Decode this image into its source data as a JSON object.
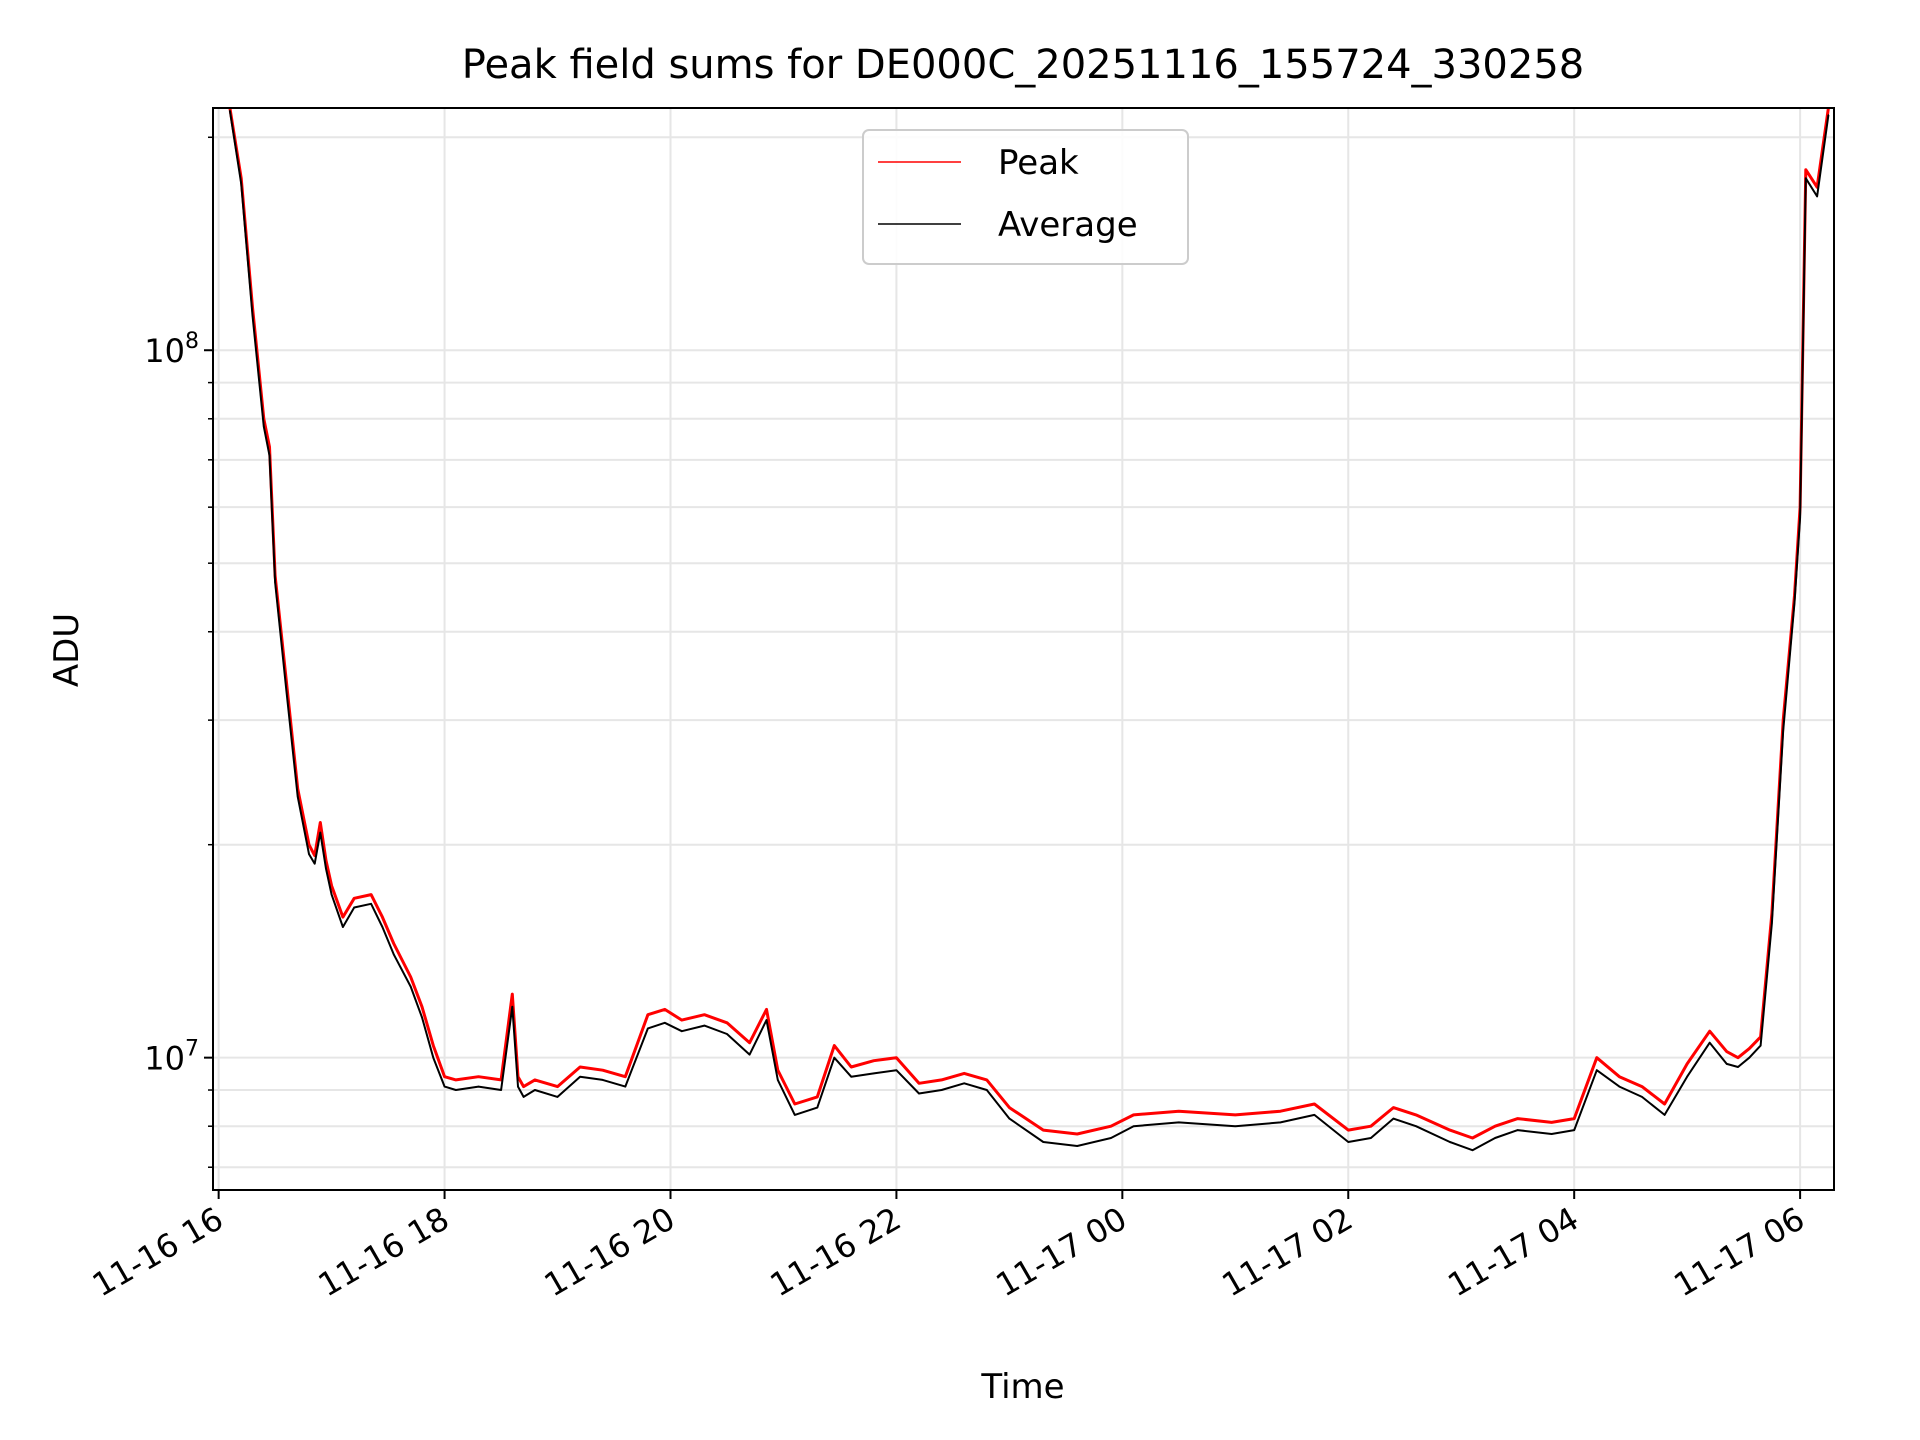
{
  "chart_data": {
    "type": "line",
    "title": "Peak field sums for DE000C_20251116_155724_330258",
    "xlabel": "Time",
    "ylabel": "ADU",
    "yscale": "log",
    "ylim": [
      6500000,
      220000000
    ],
    "xlim_hours": [
      -0.05,
      14.3
    ],
    "x_unit": "hours since 11-16 16:00",
    "grid": true,
    "legend_position": "upper-center",
    "x_ticks": [
      {
        "hours": 0,
        "label": "11-16 16"
      },
      {
        "hours": 2,
        "label": "11-16 18"
      },
      {
        "hours": 4,
        "label": "11-16 20"
      },
      {
        "hours": 6,
        "label": "11-16 22"
      },
      {
        "hours": 8,
        "label": "11-17 00"
      },
      {
        "hours": 10,
        "label": "11-17 02"
      },
      {
        "hours": 12,
        "label": "11-17 04"
      },
      {
        "hours": 14,
        "label": "11-17 06"
      }
    ],
    "y_major_ticks": [
      {
        "value": 10000000,
        "base": "10",
        "exp": "7"
      },
      {
        "value": 100000000,
        "base": "10",
        "exp": "8"
      }
    ],
    "y_minor_ticks": [
      7000000,
      8000000,
      9000000,
      20000000,
      30000000,
      40000000,
      50000000,
      60000000,
      70000000,
      80000000,
      90000000,
      200000000
    ],
    "series": [
      {
        "name": "Peak",
        "color": "#ff0000",
        "x": [
          0.1,
          0.2,
          0.3,
          0.4,
          0.45,
          0.5,
          0.6,
          0.7,
          0.8,
          0.85,
          0.9,
          0.95,
          1.0,
          1.1,
          1.2,
          1.35,
          1.45,
          1.55,
          1.7,
          1.8,
          1.9,
          2.0,
          2.1,
          2.3,
          2.5,
          2.6,
          2.65,
          2.7,
          2.8,
          3.0,
          3.2,
          3.4,
          3.6,
          3.8,
          3.95,
          4.1,
          4.3,
          4.5,
          4.7,
          4.85,
          4.95,
          5.1,
          5.3,
          5.45,
          5.6,
          5.8,
          6.0,
          6.2,
          6.4,
          6.6,
          6.8,
          7.0,
          7.3,
          7.6,
          7.9,
          8.1,
          8.5,
          9.0,
          9.4,
          9.7,
          10.0,
          10.2,
          10.4,
          10.6,
          10.9,
          11.1,
          11.3,
          11.5,
          11.8,
          12.0,
          12.2,
          12.4,
          12.6,
          12.8,
          13.0,
          13.2,
          13.35,
          13.45,
          13.55,
          13.65,
          13.75,
          13.85,
          13.95,
          14.0,
          14.05,
          14.15,
          14.25
        ],
        "values": [
          220000000,
          175000000,
          115000000,
          80000000,
          73000000,
          48000000,
          34000000,
          24000000,
          20000000,
          19300000,
          21500000,
          19000000,
          17500000,
          15800000,
          16800000,
          17000000,
          15800000,
          14500000,
          13000000,
          11800000,
          10400000,
          9400000,
          9300000,
          9400000,
          9300000,
          12300000,
          9400000,
          9100000,
          9300000,
          9100000,
          9700000,
          9600000,
          9400000,
          11500000,
          11700000,
          11300000,
          11500000,
          11200000,
          10500000,
          11700000,
          9600000,
          8600000,
          8800000,
          10400000,
          9700000,
          9900000,
          10000000,
          9200000,
          9300000,
          9500000,
          9300000,
          8500000,
          7900000,
          7800000,
          8000000,
          8300000,
          8400000,
          8300000,
          8400000,
          8600000,
          7900000,
          8000000,
          8500000,
          8300000,
          7900000,
          7700000,
          8000000,
          8200000,
          8100000,
          8200000,
          10000000,
          9400000,
          9100000,
          8600000,
          9800000,
          10900000,
          10200000,
          10000000,
          10300000,
          10700000,
          16000000,
          30000000,
          45000000,
          60000000,
          180000000,
          170000000,
          220000000
        ]
      },
      {
        "name": "Average",
        "color": "#000000",
        "x": [
          0.1,
          0.2,
          0.3,
          0.4,
          0.45,
          0.5,
          0.6,
          0.7,
          0.8,
          0.85,
          0.9,
          0.95,
          1.0,
          1.1,
          1.2,
          1.35,
          1.45,
          1.55,
          1.7,
          1.8,
          1.9,
          2.0,
          2.1,
          2.3,
          2.5,
          2.6,
          2.65,
          2.7,
          2.8,
          3.0,
          3.2,
          3.4,
          3.6,
          3.8,
          3.95,
          4.1,
          4.3,
          4.5,
          4.7,
          4.85,
          4.95,
          5.1,
          5.3,
          5.45,
          5.6,
          5.8,
          6.0,
          6.2,
          6.4,
          6.6,
          6.8,
          7.0,
          7.3,
          7.6,
          7.9,
          8.1,
          8.5,
          9.0,
          9.4,
          9.7,
          10.0,
          10.2,
          10.4,
          10.6,
          10.9,
          11.1,
          11.3,
          11.5,
          11.8,
          12.0,
          12.2,
          12.4,
          12.6,
          12.8,
          13.0,
          13.2,
          13.35,
          13.45,
          13.55,
          13.65,
          13.75,
          13.85,
          13.95,
          14.0,
          14.05,
          14.15,
          14.25
        ],
        "values": [
          218000000,
          172000000,
          112000000,
          78000000,
          71000000,
          47000000,
          33000000,
          23400000,
          19400000,
          18800000,
          20800000,
          18500000,
          17000000,
          15300000,
          16300000,
          16500000,
          15300000,
          14000000,
          12600000,
          11400000,
          10000000,
          9100000,
          9000000,
          9100000,
          9000000,
          11800000,
          9100000,
          8800000,
          9000000,
          8800000,
          9400000,
          9300000,
          9100000,
          11000000,
          11200000,
          10900000,
          11100000,
          10800000,
          10100000,
          11300000,
          9300000,
          8300000,
          8500000,
          10000000,
          9400000,
          9500000,
          9600000,
          8900000,
          9000000,
          9200000,
          9000000,
          8200000,
          7600000,
          7500000,
          7700000,
          8000000,
          8100000,
          8000000,
          8100000,
          8300000,
          7600000,
          7700000,
          8200000,
          8000000,
          7600000,
          7400000,
          7700000,
          7900000,
          7800000,
          7900000,
          9600000,
          9100000,
          8800000,
          8300000,
          9400000,
          10500000,
          9800000,
          9700000,
          10000000,
          10400000,
          15500000,
          29000000,
          44000000,
          58000000,
          175000000,
          165000000,
          215000000
        ]
      }
    ]
  }
}
